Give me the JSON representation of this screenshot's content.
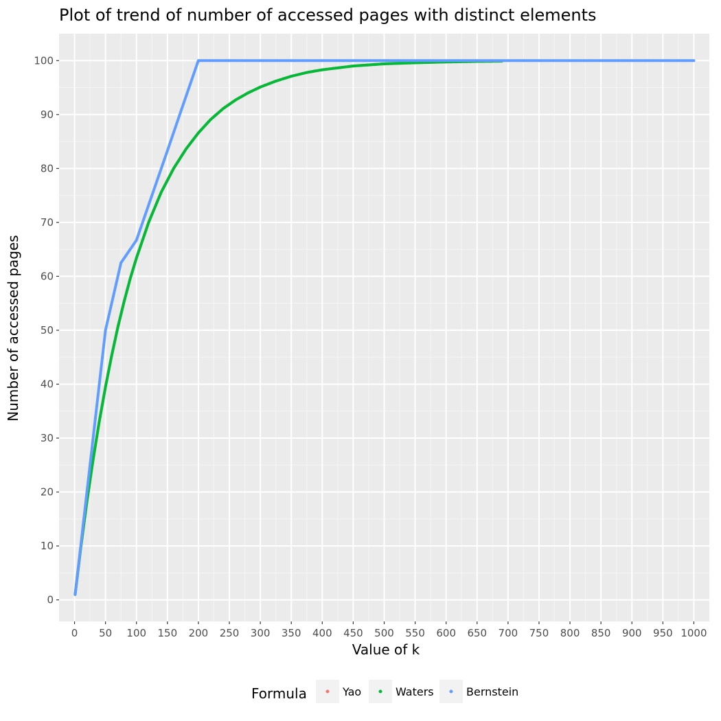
{
  "chart_data": {
    "type": "scatter",
    "title": "Plot of trend of number of accessed pages with distinct elements",
    "xlabel": "Value of k",
    "ylabel": "Number of accessed pages",
    "xlim": [
      -25,
      1025
    ],
    "ylim": [
      -4,
      105
    ],
    "x_ticks": [
      0,
      50,
      100,
      150,
      200,
      250,
      300,
      350,
      400,
      450,
      500,
      550,
      600,
      650,
      700,
      750,
      800,
      850,
      900,
      950,
      1000
    ],
    "y_ticks": [
      0,
      10,
      20,
      30,
      40,
      50,
      60,
      70,
      80,
      90,
      100
    ],
    "grid": true,
    "legend": {
      "title": "Formula",
      "position": "bottom",
      "entries": [
        "Yao",
        "Waters",
        "Bernstein"
      ]
    },
    "series": [
      {
        "name": "Yao",
        "color": "#F8766D",
        "points": [
          [
            1,
            1
          ],
          [
            10,
            9.6
          ],
          [
            20,
            18.2
          ],
          [
            30,
            26.0
          ],
          [
            40,
            33.1
          ],
          [
            50,
            39.5
          ],
          [
            60,
            45.3
          ],
          [
            70,
            50.6
          ],
          [
            80,
            55.3
          ],
          [
            90,
            59.6
          ],
          [
            100,
            63.4
          ],
          [
            120,
            70.1
          ],
          [
            140,
            75.6
          ],
          [
            160,
            80.0
          ],
          [
            180,
            83.6
          ],
          [
            200,
            86.6
          ],
          [
            220,
            89.1
          ],
          [
            240,
            91.1
          ],
          [
            260,
            92.7
          ],
          [
            280,
            94.0
          ],
          [
            300,
            95.1
          ],
          [
            325,
            96.2
          ],
          [
            350,
            97.1
          ],
          [
            375,
            97.8
          ],
          [
            400,
            98.3
          ],
          [
            450,
            99.0
          ],
          [
            500,
            99.4
          ],
          [
            550,
            99.6
          ],
          [
            600,
            99.75
          ],
          [
            650,
            99.85
          ],
          [
            690,
            99.9
          ]
        ]
      },
      {
        "name": "Waters",
        "color": "#00BA38",
        "points": [
          [
            1,
            1
          ],
          [
            10,
            9.6
          ],
          [
            20,
            18.2
          ],
          [
            30,
            26.0
          ],
          [
            40,
            33.1
          ],
          [
            50,
            39.5
          ],
          [
            60,
            45.3
          ],
          [
            70,
            50.6
          ],
          [
            80,
            55.3
          ],
          [
            90,
            59.6
          ],
          [
            100,
            63.4
          ],
          [
            120,
            70.1
          ],
          [
            140,
            75.6
          ],
          [
            160,
            80.0
          ],
          [
            180,
            83.6
          ],
          [
            200,
            86.6
          ],
          [
            220,
            89.1
          ],
          [
            240,
            91.1
          ],
          [
            260,
            92.7
          ],
          [
            280,
            94.0
          ],
          [
            300,
            95.1
          ],
          [
            325,
            96.2
          ],
          [
            350,
            97.1
          ],
          [
            375,
            97.8
          ],
          [
            400,
            98.3
          ],
          [
            450,
            99.0
          ],
          [
            500,
            99.4
          ],
          [
            550,
            99.6
          ],
          [
            600,
            99.75
          ],
          [
            650,
            99.85
          ],
          [
            690,
            99.9
          ]
        ]
      },
      {
        "name": "Bernstein",
        "color": "#619CFF",
        "points": [
          [
            1,
            1
          ],
          [
            5,
            5
          ],
          [
            10,
            10
          ],
          [
            15,
            15
          ],
          [
            20,
            20
          ],
          [
            25,
            25
          ],
          [
            30,
            30
          ],
          [
            35,
            35
          ],
          [
            40,
            40
          ],
          [
            45,
            45
          ],
          [
            49,
            49
          ],
          [
            50,
            50
          ],
          [
            75,
            62.5
          ],
          [
            100,
            66.7
          ],
          [
            125,
            75
          ],
          [
            150,
            83.3
          ],
          [
            175,
            91.7
          ],
          [
            199,
            99.7
          ],
          [
            200,
            100
          ],
          [
            300,
            100
          ],
          [
            400,
            100
          ],
          [
            500,
            100
          ],
          [
            600,
            100
          ],
          [
            700,
            100
          ],
          [
            800,
            100
          ],
          [
            900,
            100
          ],
          [
            1000,
            100
          ]
        ]
      }
    ]
  }
}
